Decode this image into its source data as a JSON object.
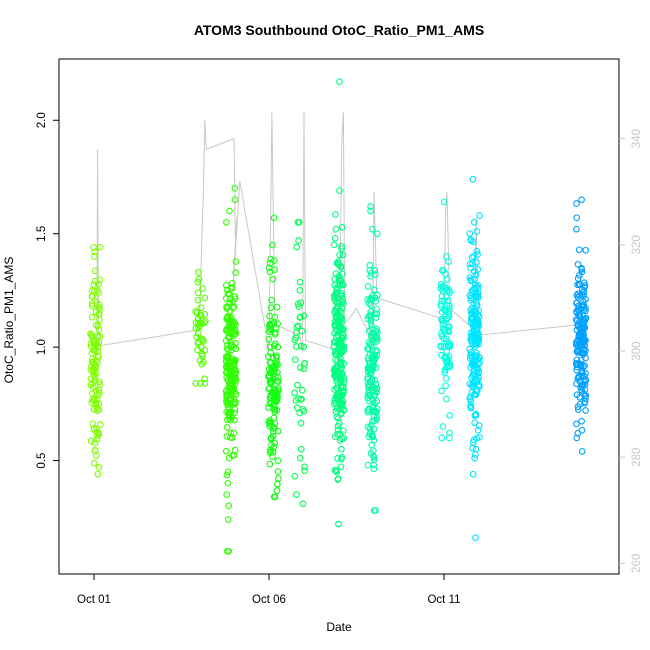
{
  "chart_data": {
    "type": "scatter",
    "title": "ATOM3 Southbound OtoC_Ratio_PM1_AMS",
    "xlabel": "Date",
    "ylabel": "OtoC_Ratio_PM1_AMS",
    "xlim": [
      "2016-09-30",
      "2016-10-16"
    ],
    "ylim": [
      0.0,
      2.27
    ],
    "x_ticks": [
      {
        "value": "2016-10-01",
        "label": "Oct 01"
      },
      {
        "value": "2016-10-06",
        "label": "Oct 06"
      },
      {
        "value": "2016-10-11",
        "label": "Oct 11"
      }
    ],
    "y_ticks": [
      0.5,
      1.0,
      1.5,
      2.0
    ],
    "y2_ticks": [
      260,
      280,
      300,
      320,
      340
    ],
    "y2lim": [
      258.0,
      355.0
    ],
    "grid": false,
    "marker": "open-circle",
    "color_scale": [
      "#7fff00",
      "#00ff00",
      "#00ffa0",
      "#00ffff",
      "#0096ff"
    ],
    "series": [
      {
        "x_center": "2016-10-01T01:00",
        "color": "#7fff00",
        "count": 110,
        "median": 0.93,
        "spread": 0.24,
        "min": 0.44,
        "max": 1.44,
        "outliers": [
          0.44,
          0.47,
          1.44,
          1.42,
          1.4
        ]
      },
      {
        "x_center": "2016-10-04T01:00",
        "color": "#55ff00",
        "count": 45,
        "median": 1.07,
        "spread": 0.12,
        "min": 0.84,
        "max": 1.33,
        "outliers": [
          0.84,
          1.33,
          1.3
        ]
      },
      {
        "x_center": "2016-10-04T22:00",
        "color": "#30ff00",
        "count": 200,
        "median": 0.93,
        "spread": 0.2,
        "min": 0.1,
        "max": 1.7,
        "outliers": [
          0.1,
          0.1,
          0.24,
          0.3,
          0.35,
          0.4,
          0.45,
          1.7,
          1.65,
          1.6,
          1.55
        ]
      },
      {
        "x_center": "2016-10-06T03:00",
        "color": "#10ff10",
        "count": 130,
        "median": 0.86,
        "spread": 0.2,
        "min": 0.34,
        "max": 1.57,
        "outliers": [
          0.34,
          0.56,
          1.57,
          1.45
        ]
      },
      {
        "x_center": "2016-10-06T21:00",
        "color": "#00ff50",
        "count": 45,
        "median": 1.0,
        "spread": 0.25,
        "min": 0.31,
        "max": 1.55,
        "outliers": [
          0.31,
          0.35,
          0.43,
          0.55,
          1.55,
          1.47
        ]
      },
      {
        "x_center": "2016-10-08T00:00",
        "color": "#00ff80",
        "count": 230,
        "median": 0.97,
        "spread": 0.22,
        "min": 0.22,
        "max": 2.17,
        "outliers": [
          0.22,
          0.42,
          0.45,
          0.55,
          2.17,
          1.69,
          1.52,
          1.48
        ]
      },
      {
        "x_center": "2016-10-08T23:00",
        "color": "#00ffa5",
        "count": 160,
        "median": 0.92,
        "spread": 0.2,
        "min": 0.28,
        "max": 1.62,
        "outliers": [
          0.28,
          0.48,
          0.52,
          1.62,
          1.6,
          1.5
        ]
      },
      {
        "x_center": "2016-10-11T01:00",
        "color": "#00ffe0",
        "count": 90,
        "median": 1.03,
        "spread": 0.17,
        "min": 0.6,
        "max": 1.64,
        "outliers": [
          0.6,
          0.65,
          1.64,
          1.4
        ]
      },
      {
        "x_center": "2016-10-11T21:00",
        "color": "#00e5ff",
        "count": 200,
        "median": 1.02,
        "spread": 0.2,
        "min": 0.16,
        "max": 1.74,
        "outliers": [
          0.16,
          0.44,
          0.55,
          1.74,
          1.58,
          1.55
        ]
      },
      {
        "x_center": "2016-10-14T22:00",
        "color": "#00a0ff",
        "count": 170,
        "median": 1.05,
        "spread": 0.17,
        "min": 0.54,
        "max": 1.65,
        "outliers": [
          0.54,
          0.6,
          0.62,
          1.65,
          1.57,
          1.52
        ]
      }
    ],
    "overlay_line": {
      "axis": "right",
      "color": "#c8c8c8",
      "points": [
        [
          "2016-10-01T00:00",
          300.0
        ],
        [
          "2016-10-01T01:00",
          301.0
        ],
        [
          "2016-10-01T02:00",
          303.0
        ],
        [
          "2016-10-01T02:30",
          338.0
        ],
        [
          "2016-10-01T03:00",
          305.0
        ],
        [
          "2016-10-01T04:00",
          301.0
        ],
        [
          "2016-10-04T00:00",
          304.0
        ],
        [
          "2016-10-04T01:00",
          311.0
        ],
        [
          "2016-10-04T02:00",
          322.0
        ],
        [
          "2016-10-04T03:00",
          330.0
        ],
        [
          "2016-10-04T04:00",
          343.5
        ],
        [
          "2016-10-04T05:00",
          338.0
        ],
        [
          "2016-10-05T00:00",
          340.0
        ],
        [
          "2016-10-05T01:00",
          320.0
        ],
        [
          "2016-10-05T02:00",
          325.0
        ],
        [
          "2016-10-04T22:00",
          306.0
        ],
        [
          "2016-10-05T04:00",
          332.0
        ],
        [
          "2016-10-06T00:00",
          300.0
        ],
        [
          "2016-10-06T02:00",
          345.0
        ],
        [
          "2016-10-06T04:00",
          305.0
        ],
        [
          "2016-10-06T21:00",
          303.0
        ],
        [
          "2016-10-06T23:00",
          300.0
        ],
        [
          "2016-10-07T00:00",
          345.0
        ],
        [
          "2016-10-07T01:00",
          302.0
        ],
        [
          "2016-10-08T00:00",
          300.0
        ],
        [
          "2016-10-08T02:00",
          340.0
        ],
        [
          "2016-10-08T03:00",
          345.0
        ],
        [
          "2016-10-08T04:00",
          305.0
        ],
        [
          "2016-10-08T12:00",
          308.0
        ],
        [
          "2016-10-08T23:00",
          302.0
        ],
        [
          "2016-10-09T00:00",
          330.0
        ],
        [
          "2016-10-09T02:00",
          310.0
        ],
        [
          "2016-10-11T00:00",
          306.0
        ],
        [
          "2016-10-11T01:00",
          326.0
        ],
        [
          "2016-10-11T02:00",
          330.0
        ],
        [
          "2016-10-11T04:00",
          308.0
        ],
        [
          "2016-10-11T21:00",
          304.0
        ],
        [
          "2016-10-11T22:00",
          325.0
        ],
        [
          "2016-10-12T00:00",
          303.0
        ],
        [
          "2016-10-14T22:00",
          305.0
        ]
      ]
    }
  }
}
